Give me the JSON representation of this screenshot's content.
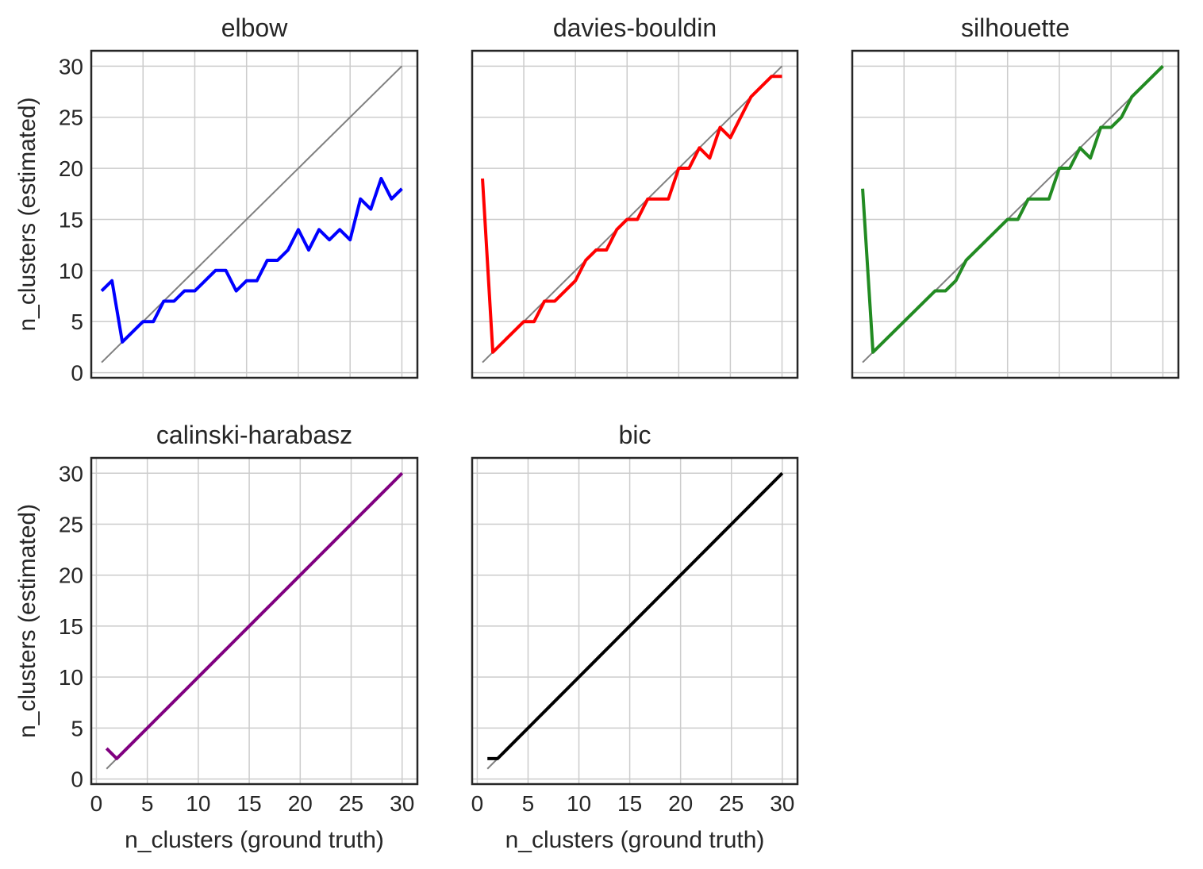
{
  "chart_data": [
    {
      "type": "line",
      "title": "elbow",
      "xlabel": "",
      "ylabel": "n_clusters (estimated)",
      "xlim": [
        0,
        31.5
      ],
      "ylim": [
        -0.5,
        31.5
      ],
      "xticks": [
        0,
        5,
        10,
        15,
        20,
        25,
        30
      ],
      "yticks": [
        0,
        5,
        10,
        15,
        20,
        25,
        30
      ],
      "show_xticklabels": false,
      "show_yticklabels": true,
      "grid": true,
      "reference_line": {
        "x": [
          1,
          30
        ],
        "y": [
          1,
          30
        ],
        "color": "#808080"
      },
      "series": [
        {
          "color": "#0000ff",
          "x": [
            1,
            2,
            3,
            4,
            5,
            6,
            7,
            8,
            9,
            10,
            11,
            12,
            13,
            14,
            15,
            16,
            17,
            18,
            19,
            20,
            21,
            22,
            23,
            24,
            25,
            26,
            27,
            28,
            29,
            30
          ],
          "values": [
            8,
            9,
            3,
            4,
            5,
            5,
            7,
            7,
            8,
            8,
            9,
            10,
            10,
            8,
            9,
            9,
            11,
            11,
            12,
            14,
            12,
            14,
            13,
            14,
            13,
            17,
            16,
            19,
            17,
            18
          ]
        }
      ]
    },
    {
      "type": "line",
      "title": "davies-bouldin",
      "xlabel": "",
      "ylabel": "",
      "xlim": [
        0,
        31.5
      ],
      "ylim": [
        -0.5,
        31.5
      ],
      "xticks": [
        0,
        5,
        10,
        15,
        20,
        25,
        30
      ],
      "yticks": [
        0,
        5,
        10,
        15,
        20,
        25,
        30
      ],
      "show_xticklabels": false,
      "show_yticklabels": false,
      "grid": true,
      "reference_line": {
        "x": [
          1,
          30
        ],
        "y": [
          1,
          30
        ],
        "color": "#808080"
      },
      "series": [
        {
          "color": "#ff0000",
          "x": [
            1,
            2,
            3,
            4,
            5,
            6,
            7,
            8,
            9,
            10,
            11,
            12,
            13,
            14,
            15,
            16,
            17,
            18,
            19,
            20,
            21,
            22,
            23,
            24,
            25,
            26,
            27,
            28,
            29,
            30
          ],
          "values": [
            19,
            2,
            3,
            4,
            5,
            5,
            7,
            7,
            8,
            9,
            11,
            12,
            12,
            14,
            15,
            15,
            17,
            17,
            17,
            20,
            20,
            22,
            21,
            24,
            23,
            25,
            27,
            28,
            29,
            29
          ]
        }
      ]
    },
    {
      "type": "line",
      "title": "silhouette",
      "xlabel": "",
      "ylabel": "",
      "xlim": [
        0,
        31.5
      ],
      "ylim": [
        -0.5,
        31.5
      ],
      "xticks": [
        0,
        5,
        10,
        15,
        20,
        25,
        30
      ],
      "yticks": [
        0,
        5,
        10,
        15,
        20,
        25,
        30
      ],
      "show_xticklabels": false,
      "show_yticklabels": false,
      "grid": true,
      "reference_line": {
        "x": [
          1,
          30
        ],
        "y": [
          1,
          30
        ],
        "color": "#808080"
      },
      "series": [
        {
          "color": "#228b22",
          "x": [
            1,
            2,
            3,
            4,
            5,
            6,
            7,
            8,
            9,
            10,
            11,
            12,
            13,
            14,
            15,
            16,
            17,
            18,
            19,
            20,
            21,
            22,
            23,
            24,
            25,
            26,
            27,
            28,
            29,
            30
          ],
          "values": [
            18,
            2,
            3,
            4,
            5,
            6,
            7,
            8,
            8,
            9,
            11,
            12,
            13,
            14,
            15,
            15,
            17,
            17,
            17,
            20,
            20,
            22,
            21,
            24,
            24,
            25,
            27,
            28,
            29,
            30
          ]
        }
      ]
    },
    {
      "type": "line",
      "title": "calinski-harabasz",
      "xlabel": "n_clusters (ground truth)",
      "ylabel": "n_clusters (estimated)",
      "xlim": [
        -0.5,
        31.5
      ],
      "ylim": [
        -0.5,
        31.5
      ],
      "xticks": [
        0,
        5,
        10,
        15,
        20,
        25,
        30
      ],
      "yticks": [
        0,
        5,
        10,
        15,
        20,
        25,
        30
      ],
      "show_xticklabels": true,
      "show_yticklabels": true,
      "grid": true,
      "reference_line": {
        "x": [
          1,
          30
        ],
        "y": [
          1,
          30
        ],
        "color": "#808080"
      },
      "series": [
        {
          "color": "#800080",
          "x": [
            1,
            2,
            3,
            4,
            5,
            6,
            7,
            8,
            9,
            10,
            11,
            12,
            13,
            14,
            15,
            16,
            17,
            18,
            19,
            20,
            21,
            22,
            23,
            24,
            25,
            26,
            27,
            28,
            29,
            30
          ],
          "values": [
            3,
            2,
            3,
            4,
            5,
            6,
            7,
            8,
            9,
            10,
            11,
            12,
            13,
            14,
            15,
            16,
            17,
            18,
            19,
            20,
            21,
            22,
            23,
            24,
            25,
            26,
            27,
            28,
            29,
            30
          ]
        }
      ]
    },
    {
      "type": "line",
      "title": "bic",
      "xlabel": "n_clusters (ground truth)",
      "ylabel": "",
      "xlim": [
        -0.5,
        31.5
      ],
      "ylim": [
        -0.5,
        31.5
      ],
      "xticks": [
        0,
        5,
        10,
        15,
        20,
        25,
        30
      ],
      "yticks": [
        0,
        5,
        10,
        15,
        20,
        25,
        30
      ],
      "show_xticklabels": true,
      "show_yticklabels": false,
      "grid": true,
      "reference_line": {
        "x": [
          1,
          30
        ],
        "y": [
          1,
          30
        ],
        "color": "#808080"
      },
      "series": [
        {
          "color": "#000000",
          "x": [
            1,
            2,
            3,
            4,
            5,
            6,
            7,
            8,
            9,
            10,
            11,
            12,
            13,
            14,
            15,
            16,
            17,
            18,
            19,
            20,
            21,
            22,
            23,
            24,
            25,
            26,
            27,
            28,
            29,
            30
          ],
          "values": [
            2,
            2,
            3,
            4,
            5,
            6,
            7,
            8,
            9,
            10,
            11,
            12,
            13,
            14,
            15,
            16,
            17,
            18,
            19,
            20,
            21,
            22,
            23,
            24,
            25,
            26,
            27,
            28,
            29,
            30
          ]
        }
      ]
    }
  ]
}
